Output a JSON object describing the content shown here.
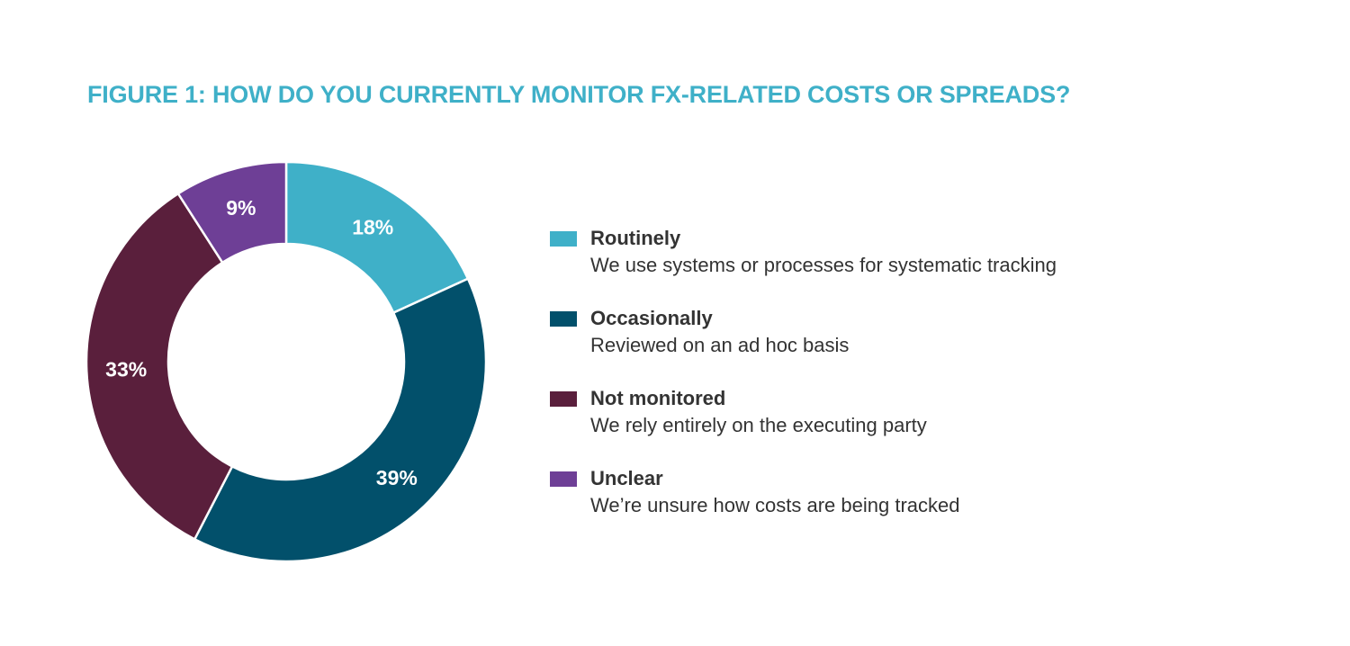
{
  "title": "FIGURE 1: HOW DO YOU CURRENTLY MONITOR FX-RELATED COSTS OR SPREADS?",
  "chart_data": {
    "type": "pie",
    "variant": "donut",
    "title": "FIGURE 1: HOW DO YOU CURRENTLY MONITOR FX-RELATED COSTS OR SPREADS?",
    "unit": "%",
    "start": "12 o'clock",
    "direction": "clockwise",
    "legend_position": "right",
    "slices": [
      {
        "label": "Routinely",
        "description": "We use systems or processes for systematic tracking",
        "value": 18,
        "display": "18%",
        "color": "#3fb0c8"
      },
      {
        "label": "Occasionally",
        "description": "Reviewed on an ad hoc basis",
        "value": 39,
        "display": "39%",
        "color": "#02506b"
      },
      {
        "label": "Not monitored",
        "description": "We rely entirely on the executing party",
        "value": 33,
        "display": "33%",
        "color": "#5a1f3c"
      },
      {
        "label": "Unclear",
        "description": "We’re unsure how costs are being tracked",
        "value": 9,
        "display": "9%",
        "color": "#6e3f96"
      }
    ]
  }
}
